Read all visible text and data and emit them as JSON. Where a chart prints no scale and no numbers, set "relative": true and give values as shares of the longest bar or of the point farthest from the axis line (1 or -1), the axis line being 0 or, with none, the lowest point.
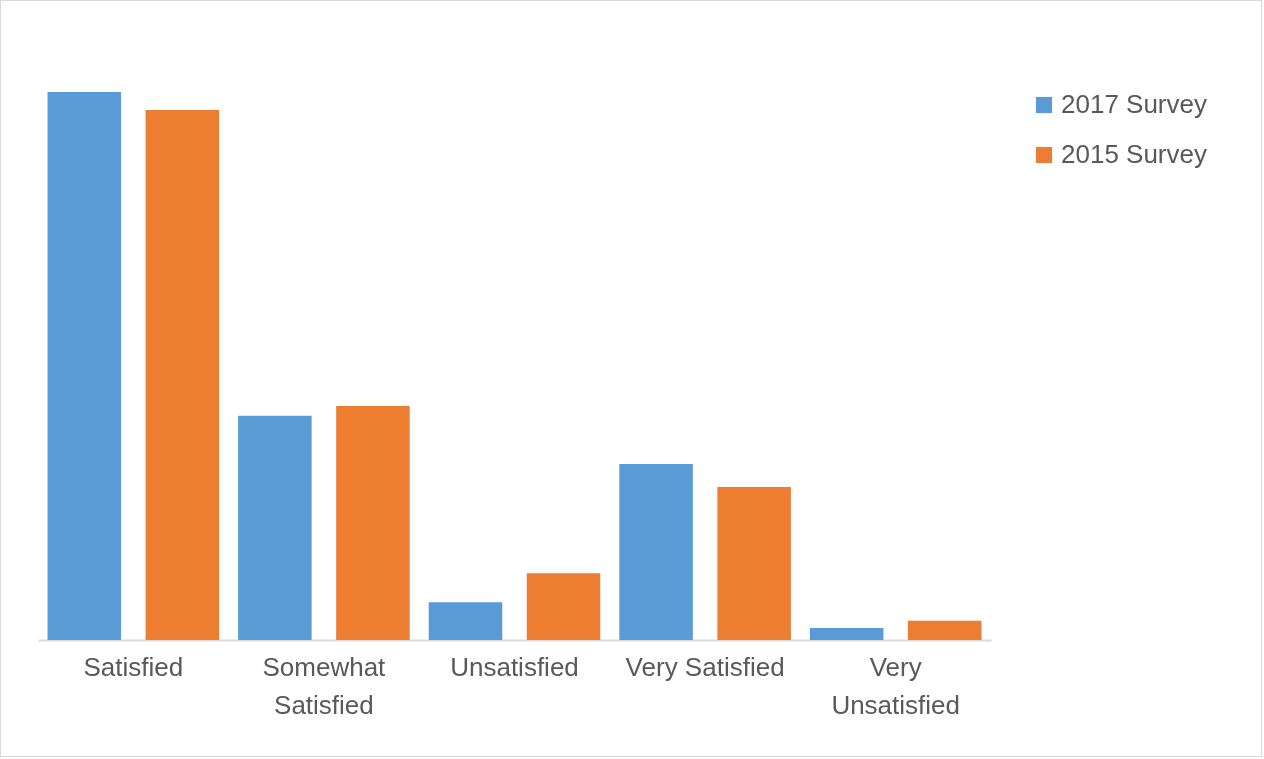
{
  "chart_data": {
    "type": "bar",
    "relative": true,
    "categories": [
      "Satisfied",
      "Somewhat Satisfied",
      "Unsatisfied",
      "Very Satisfied",
      "Very Unsatisfied"
    ],
    "series": [
      {
        "name": "2017 Survey",
        "color": "#5b9bd5",
        "values": [
          1,
          0.409,
          0.069,
          0.321,
          0.022
        ]
      },
      {
        "name": "2015 Survey",
        "color": "#ed7d31",
        "values": [
          0.967,
          0.427,
          0.122,
          0.279,
          0.035
        ]
      }
    ],
    "legend": "right",
    "grid": false
  }
}
